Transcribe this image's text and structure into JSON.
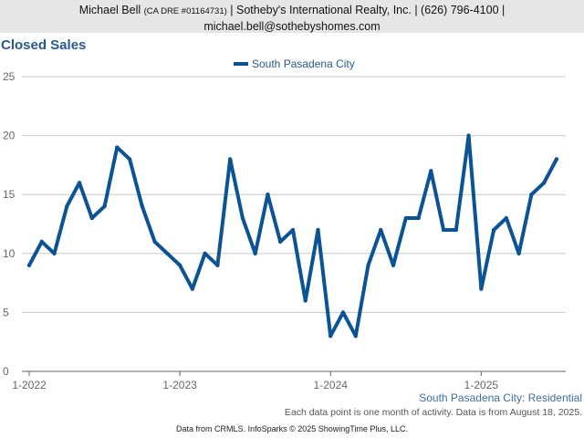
{
  "header": {
    "name": "Michael Bell",
    "dre": "(CA DRE #01164731)",
    "company_phone": "| Sotheby's International Realty, Inc. | (626) 796-4100 |",
    "email": "michael.bell@sothebyshomes.com"
  },
  "subtitle": "South Pasadena City: Residential",
  "note": "Each data point is one month of activity. Data is from August 18, 2025.",
  "credit": "Data from CRMLS. InfoSparks © 2025 ShowingTime Plus, LLC.",
  "chart_data": {
    "type": "line",
    "title": "Closed Sales",
    "xlabel": "",
    "ylabel": "",
    "ylim": [
      0,
      25
    ],
    "yticks": [
      0,
      5,
      10,
      15,
      20,
      25
    ],
    "xticks": [
      "1-2022",
      "1-2023",
      "1-2024",
      "1-2025"
    ],
    "grid": true,
    "legend": "top-center",
    "x": [
      "2022-01",
      "2022-02",
      "2022-03",
      "2022-04",
      "2022-05",
      "2022-06",
      "2022-07",
      "2022-08",
      "2022-09",
      "2022-10",
      "2022-11",
      "2022-12",
      "2023-01",
      "2023-02",
      "2023-03",
      "2023-04",
      "2023-05",
      "2023-06",
      "2023-07",
      "2023-08",
      "2023-09",
      "2023-10",
      "2023-11",
      "2023-12",
      "2024-01",
      "2024-02",
      "2024-03",
      "2024-04",
      "2024-05",
      "2024-06",
      "2024-07",
      "2024-08",
      "2024-09",
      "2024-10",
      "2024-11",
      "2024-12",
      "2025-01",
      "2025-02",
      "2025-03",
      "2025-04",
      "2025-05",
      "2025-06",
      "2025-07"
    ],
    "series": [
      {
        "name": "South Pasadena City",
        "color": "#0b5394",
        "values": [
          9,
          11,
          10,
          14,
          16,
          13,
          14,
          19,
          18,
          14,
          11,
          10,
          9,
          7,
          10,
          9,
          18,
          13,
          10,
          15,
          11,
          12,
          6,
          12,
          3,
          5,
          3,
          9,
          12,
          9,
          13,
          13,
          17,
          12,
          12,
          20,
          7,
          12,
          13,
          10,
          15,
          16,
          18
        ]
      }
    ]
  }
}
